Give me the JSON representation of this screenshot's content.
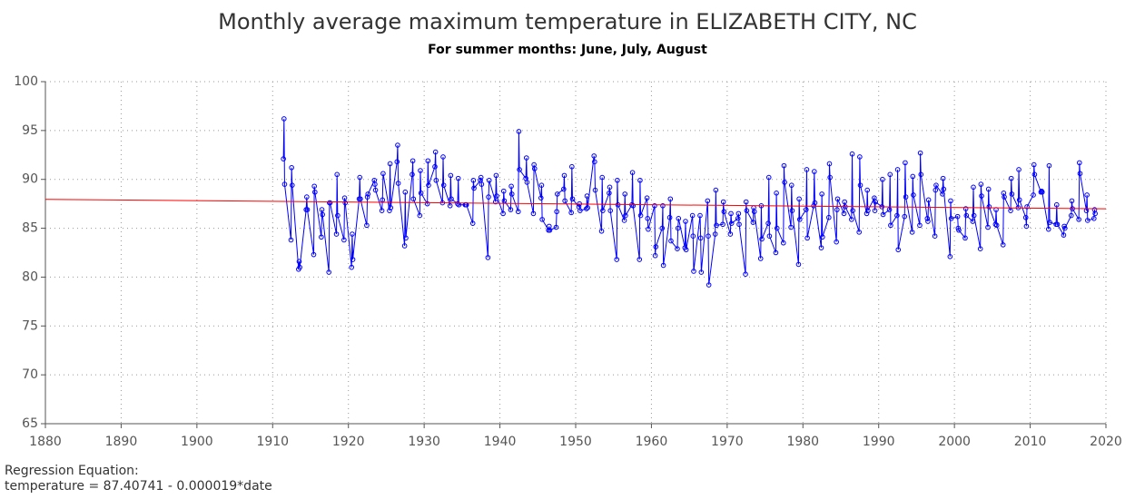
{
  "chart_data": {
    "type": "line",
    "title": "Monthly average maximum temperature in ELIZABETH CITY, NC",
    "subtitle": "For summer months: June, July, August",
    "footnote": [
      "Regression Equation:",
      "temperature =  87.40741 - 0.000019*date"
    ],
    "xlim": [
      1880,
      2020
    ],
    "xticks": [
      1880,
      1890,
      1900,
      1910,
      1920,
      1930,
      1940,
      1950,
      1960,
      1970,
      1980,
      1990,
      2000,
      2010,
      2020
    ],
    "ylim": [
      65,
      100
    ],
    "yticks": [
      65,
      70,
      75,
      80,
      85,
      90,
      95,
      100
    ],
    "grid": true,
    "series": [
      {
        "color": "#0000ff",
        "markers": true,
        "x": [
          1911.42,
          1911.5,
          1911.58,
          1912.42,
          1912.5,
          1912.58,
          1913.42,
          1913.5,
          1913.58,
          1914.42,
          1914.5,
          1914.58,
          1915.42,
          1915.5,
          1915.58,
          1916.42,
          1916.5,
          1916.58,
          1917.42,
          1917.5,
          1917.58,
          1918.42,
          1918.5,
          1918.58,
          1919.42,
          1919.5,
          1919.58,
          1920.42,
          1920.5,
          1920.58,
          1921.42,
          1921.5,
          1921.58,
          1922.42,
          1922.5,
          1922.58,
          1923.42,
          1923.5,
          1923.58,
          1924.42,
          1924.5,
          1924.58,
          1925.42,
          1925.5,
          1925.58,
          1926.42,
          1926.5,
          1926.58,
          1927.42,
          1927.5,
          1927.58,
          1928.42,
          1928.5,
          1928.58,
          1929.42,
          1929.5,
          1929.58,
          1930.42,
          1930.5,
          1930.58,
          1931.42,
          1931.5,
          1931.58,
          1932.42,
          1932.5,
          1932.58,
          1933.42,
          1933.5,
          1933.58,
          1934.42,
          1934.5,
          1934.58,
          1935.42,
          1935.5,
          1935.58,
          1936.42,
          1936.5,
          1936.58,
          1937.42,
          1937.5,
          1937.58,
          1938.42,
          1938.5,
          1938.58,
          1939.42,
          1939.5,
          1939.58,
          1940.42,
          1940.5,
          1940.58,
          1941.42,
          1941.5,
          1941.58,
          1942.42,
          1942.5,
          1942.58,
          1943.42,
          1943.5,
          1943.58,
          1944.42,
          1944.5,
          1944.58,
          1945.42,
          1945.5,
          1945.58,
          1946.42,
          1946.5,
          1946.58,
          1947.42,
          1947.5,
          1947.58,
          1948.42,
          1948.5,
          1948.58,
          1949.42,
          1949.5,
          1949.58,
          1950.42,
          1950.5,
          1950.58,
          1951.42,
          1951.5,
          1951.58,
          1952.42,
          1952.5,
          1952.58,
          1953.42,
          1953.5,
          1953.58,
          1954.42,
          1954.5,
          1954.58,
          1955.42,
          1955.5,
          1955.58,
          1956.42,
          1956.5,
          1956.58,
          1957.42,
          1957.5,
          1957.58,
          1958.42,
          1958.5,
          1958.58,
          1959.42,
          1959.5,
          1959.58,
          1960.42,
          1960.5,
          1960.58,
          1961.42,
          1961.5,
          1961.58,
          1962.42,
          1962.5,
          1962.58,
          1963.42,
          1963.5,
          1963.58,
          1964.42,
          1964.5,
          1964.58,
          1965.42,
          1965.5,
          1965.58,
          1966.42,
          1966.5,
          1966.58,
          1967.42,
          1967.5,
          1967.58,
          1968.42,
          1968.5,
          1968.58,
          1969.42,
          1969.5,
          1969.58,
          1970.42,
          1970.5,
          1970.58,
          1971.42,
          1971.5,
          1971.58,
          1972.42,
          1972.5,
          1972.58,
          1973.42,
          1973.5,
          1973.58,
          1974.42,
          1974.5,
          1974.58,
          1975.42,
          1975.5,
          1975.58,
          1976.42,
          1976.5,
          1976.58,
          1977.42,
          1977.5,
          1977.58,
          1978.42,
          1978.5,
          1978.58,
          1979.42,
          1979.5,
          1979.58,
          1980.42,
          1980.5,
          1980.58,
          1981.42,
          1981.5,
          1981.58,
          1982.42,
          1982.5,
          1982.58,
          1983.42,
          1983.5,
          1983.58,
          1984.42,
          1984.5,
          1984.58,
          1985.42,
          1985.5,
          1985.58,
          1986.42,
          1986.5,
          1986.58,
          1987.42,
          1987.5,
          1987.58,
          1988.42,
          1988.5,
          1988.58,
          1989.42,
          1989.5,
          1989.58,
          1990.42,
          1990.5,
          1990.58,
          1991.42,
          1991.5,
          1991.58,
          1992.42,
          1992.5,
          1992.58,
          1993.42,
          1993.5,
          1993.58,
          1994.42,
          1994.5,
          1994.58,
          1995.42,
          1995.5,
          1995.58,
          1996.42,
          1996.5,
          1996.58,
          1997.42,
          1997.5,
          1997.58,
          1998.42,
          1998.5,
          1998.58,
          1999.42,
          1999.5,
          1999.58,
          2000.42,
          2000.5,
          2000.58,
          2001.42,
          2001.5,
          2001.58,
          2002.42,
          2002.5,
          2002.58,
          2003.42,
          2003.5,
          2003.58,
          2004.42,
          2004.5,
          2004.58,
          2005.42,
          2005.5,
          2005.58,
          2006.42,
          2006.5,
          2006.58,
          2007.42,
          2007.5,
          2007.58,
          2008.42,
          2008.5,
          2008.58,
          2009.42,
          2009.5,
          2009.58,
          2010.42,
          2010.5,
          2010.58,
          2011.42,
          2011.5,
          2011.58,
          2012.42,
          2012.5,
          2012.58,
          2013.42,
          2013.5,
          2013.58,
          2014.42,
          2014.5,
          2014.58,
          2015.42,
          2015.5,
          2015.58,
          2016.42,
          2016.5,
          2016.58,
          2017.42,
          2017.5,
          2017.58,
          2018.42,
          2018.5,
          2018.58
        ],
        "values": [
          92.1,
          96.2,
          89.5,
          83.8,
          91.2,
          89.4,
          80.8,
          81.6,
          81.0,
          86.9,
          88.2,
          86.9,
          82.3,
          89.3,
          88.7,
          84.1,
          86.9,
          86.4,
          80.5,
          87.6,
          87.6,
          84.4,
          90.5,
          86.3,
          83.8,
          88.1,
          87.6,
          81.0,
          84.4,
          81.8,
          88.0,
          90.2,
          88.0,
          85.3,
          88.2,
          88.5,
          89.9,
          89.5,
          88.9,
          86.8,
          87.9,
          90.6,
          86.8,
          91.6,
          87.1,
          91.8,
          93.5,
          89.6,
          83.2,
          88.7,
          84.0,
          90.5,
          91.9,
          88.0,
          86.3,
          90.9,
          88.6,
          87.5,
          91.9,
          89.4,
          91.3,
          92.8,
          89.9,
          87.6,
          92.3,
          89.4,
          87.3,
          90.4,
          88.0,
          87.5,
          90.1,
          87.4,
          87.4,
          87.4,
          87.4,
          85.5,
          89.9,
          89.1,
          89.9,
          90.2,
          89.5,
          82.0,
          88.2,
          89.9,
          87.7,
          90.4,
          88.3,
          86.5,
          88.8,
          87.8,
          86.9,
          89.3,
          88.5,
          86.7,
          94.9,
          91.0,
          90.1,
          92.2,
          89.7,
          86.5,
          91.5,
          91.1,
          88.1,
          89.4,
          85.9,
          84.8,
          85.2,
          84.8,
          85.1,
          86.7,
          88.5,
          89.0,
          90.4,
          87.8,
          86.6,
          91.3,
          88.0,
          87.2,
          87.5,
          86.8,
          87.0,
          88.3,
          87.1,
          92.4,
          91.8,
          88.9,
          84.7,
          90.2,
          86.8,
          88.6,
          89.2,
          86.8,
          81.8,
          89.9,
          87.4,
          85.8,
          88.5,
          86.3,
          87.4,
          90.7,
          87.3,
          81.8,
          89.9,
          86.3,
          88.1,
          86.0,
          84.9,
          87.3,
          82.2,
          83.1,
          85.0,
          87.3,
          81.2,
          86.1,
          88.0,
          83.7,
          82.9,
          85.0,
          86.0,
          83.0,
          85.7,
          82.8,
          86.3,
          84.2,
          80.6,
          86.3,
          84.0,
          80.5,
          87.8,
          84.2,
          79.2,
          84.4,
          88.9,
          85.3,
          85.4,
          87.7,
          86.7,
          84.4,
          86.5,
          85.5,
          86.0,
          86.5,
          85.4,
          80.3,
          87.7,
          86.8,
          85.6,
          87.1,
          86.7,
          81.9,
          87.3,
          83.9,
          85.5,
          90.2,
          84.2,
          82.5,
          88.6,
          85.0,
          83.5,
          91.4,
          89.7,
          85.1,
          89.4,
          86.8,
          81.3,
          88.0,
          85.9,
          86.9,
          91.0,
          84.0,
          87.3,
          90.8,
          87.6,
          83.0,
          88.5,
          84.1,
          86.1,
          91.6,
          90.2,
          83.6,
          86.9,
          88.0,
          86.5,
          87.7,
          87.2,
          85.9,
          92.6,
          86.8,
          84.6,
          92.3,
          89.4,
          86.5,
          88.9,
          86.8,
          88.1,
          86.8,
          87.7,
          87.2,
          90.0,
          86.4,
          86.9,
          90.5,
          85.3,
          86.3,
          91.0,
          82.8,
          86.2,
          91.7,
          88.2,
          84.6,
          90.3,
          88.4,
          85.3,
          92.7,
          90.5,
          86.0,
          85.7,
          87.9,
          84.2,
          88.9,
          89.4,
          88.5,
          90.1,
          89.0,
          82.1,
          87.8,
          86.0,
          86.2,
          85.0,
          84.8,
          84.0,
          87.0,
          86.3,
          85.7,
          89.2,
          86.3,
          82.9,
          89.5,
          88.3,
          85.1,
          89.0,
          87.2,
          85.4,
          86.9,
          85.3,
          83.3,
          88.6,
          88.2,
          86.8,
          90.1,
          88.5,
          87.1,
          91.0,
          87.9,
          86.1,
          85.2,
          87.2,
          88.4,
          91.5,
          90.5,
          88.7,
          88.8,
          88.7,
          84.9,
          91.4,
          85.6,
          85.4,
          87.4,
          85.4,
          84.3,
          85.2,
          85.0,
          86.3,
          87.8,
          87.0,
          85.9,
          91.7,
          90.6,
          86.8,
          88.4,
          85.8,
          86.0,
          86.9,
          86.5
        ]
      },
      {
        "color": "#ff0000",
        "markers": false,
        "x": [
          1880,
          2020
        ],
        "values": [
          87.96,
          86.99
        ]
      }
    ]
  }
}
